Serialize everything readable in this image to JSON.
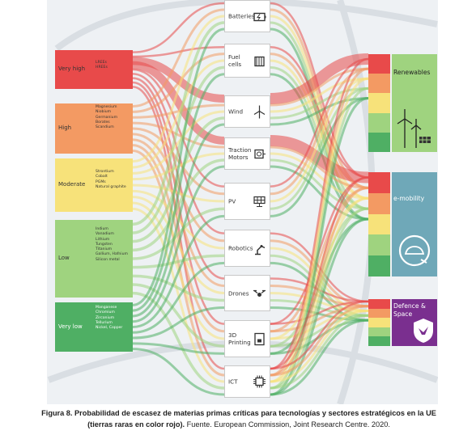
{
  "figure": {
    "risk_levels": [
      {
        "label": "Very high",
        "materials": [
          "LREEs",
          "HREEs"
        ],
        "color": "#e84a4a"
      },
      {
        "label": "High",
        "materials": [
          "Magnesium",
          "Niobium",
          "Germanium",
          "Borates",
          "Scandium"
        ],
        "color": "#f39a63"
      },
      {
        "label": "Moderate",
        "materials": [
          "Strontium",
          "Cobalt",
          "PGMs",
          "Natural graphite"
        ],
        "color": "#f7e27a"
      },
      {
        "label": "Low",
        "materials": [
          "Indium",
          "Vanadium",
          "Lithium",
          "Tungsten",
          "Titanium",
          "Gallium, Hafnium",
          "Silicon metal"
        ],
        "color": "#9fd37f"
      },
      {
        "label": "Very low",
        "materials": [
          "Manganese",
          "Chromium",
          "Zirconium",
          "Tellurium",
          "Nickel, Copper"
        ],
        "color": "#4faf64"
      }
    ],
    "technologies": [
      {
        "label": "Batteries",
        "icon": "battery-icon"
      },
      {
        "label": "Fuel\ncells",
        "icon": "fuel-cell-icon"
      },
      {
        "label": "Wind",
        "icon": "wind-turbine-icon"
      },
      {
        "label": "Traction\nMotors",
        "icon": "motor-icon"
      },
      {
        "label": "PV",
        "icon": "solar-panel-icon"
      },
      {
        "label": "Robotics",
        "icon": "robot-arm-icon"
      },
      {
        "label": "Drones",
        "icon": "drone-icon"
      },
      {
        "label": "3D\nPrinting",
        "icon": "printer-3d-icon"
      },
      {
        "label": "ICT",
        "icon": "chip-icon"
      }
    ],
    "sectors": [
      {
        "label": "Renewables",
        "color": "#9fd37f",
        "icon": "renewables-icon"
      },
      {
        "label": "e-mobility",
        "color": "#6fa8b8",
        "icon": "ev-charging-icon"
      },
      {
        "label": "Defence &\nSpace",
        "color": "#7a2f8f",
        "icon": "shield-eagle-icon"
      }
    ],
    "flow_colors": [
      "#e84a4a",
      "#f39a63",
      "#f7e27a",
      "#9fd37f",
      "#4faf64"
    ]
  },
  "caption": {
    "bold": "Figura 8. Probabilidad de escasez de materias primas críticas para tecnologías y sectores estratégicos en la UE (tierras raras en color rojo).",
    "normal": " Fuente. European Commission, Joint Research Centre. 2020."
  }
}
